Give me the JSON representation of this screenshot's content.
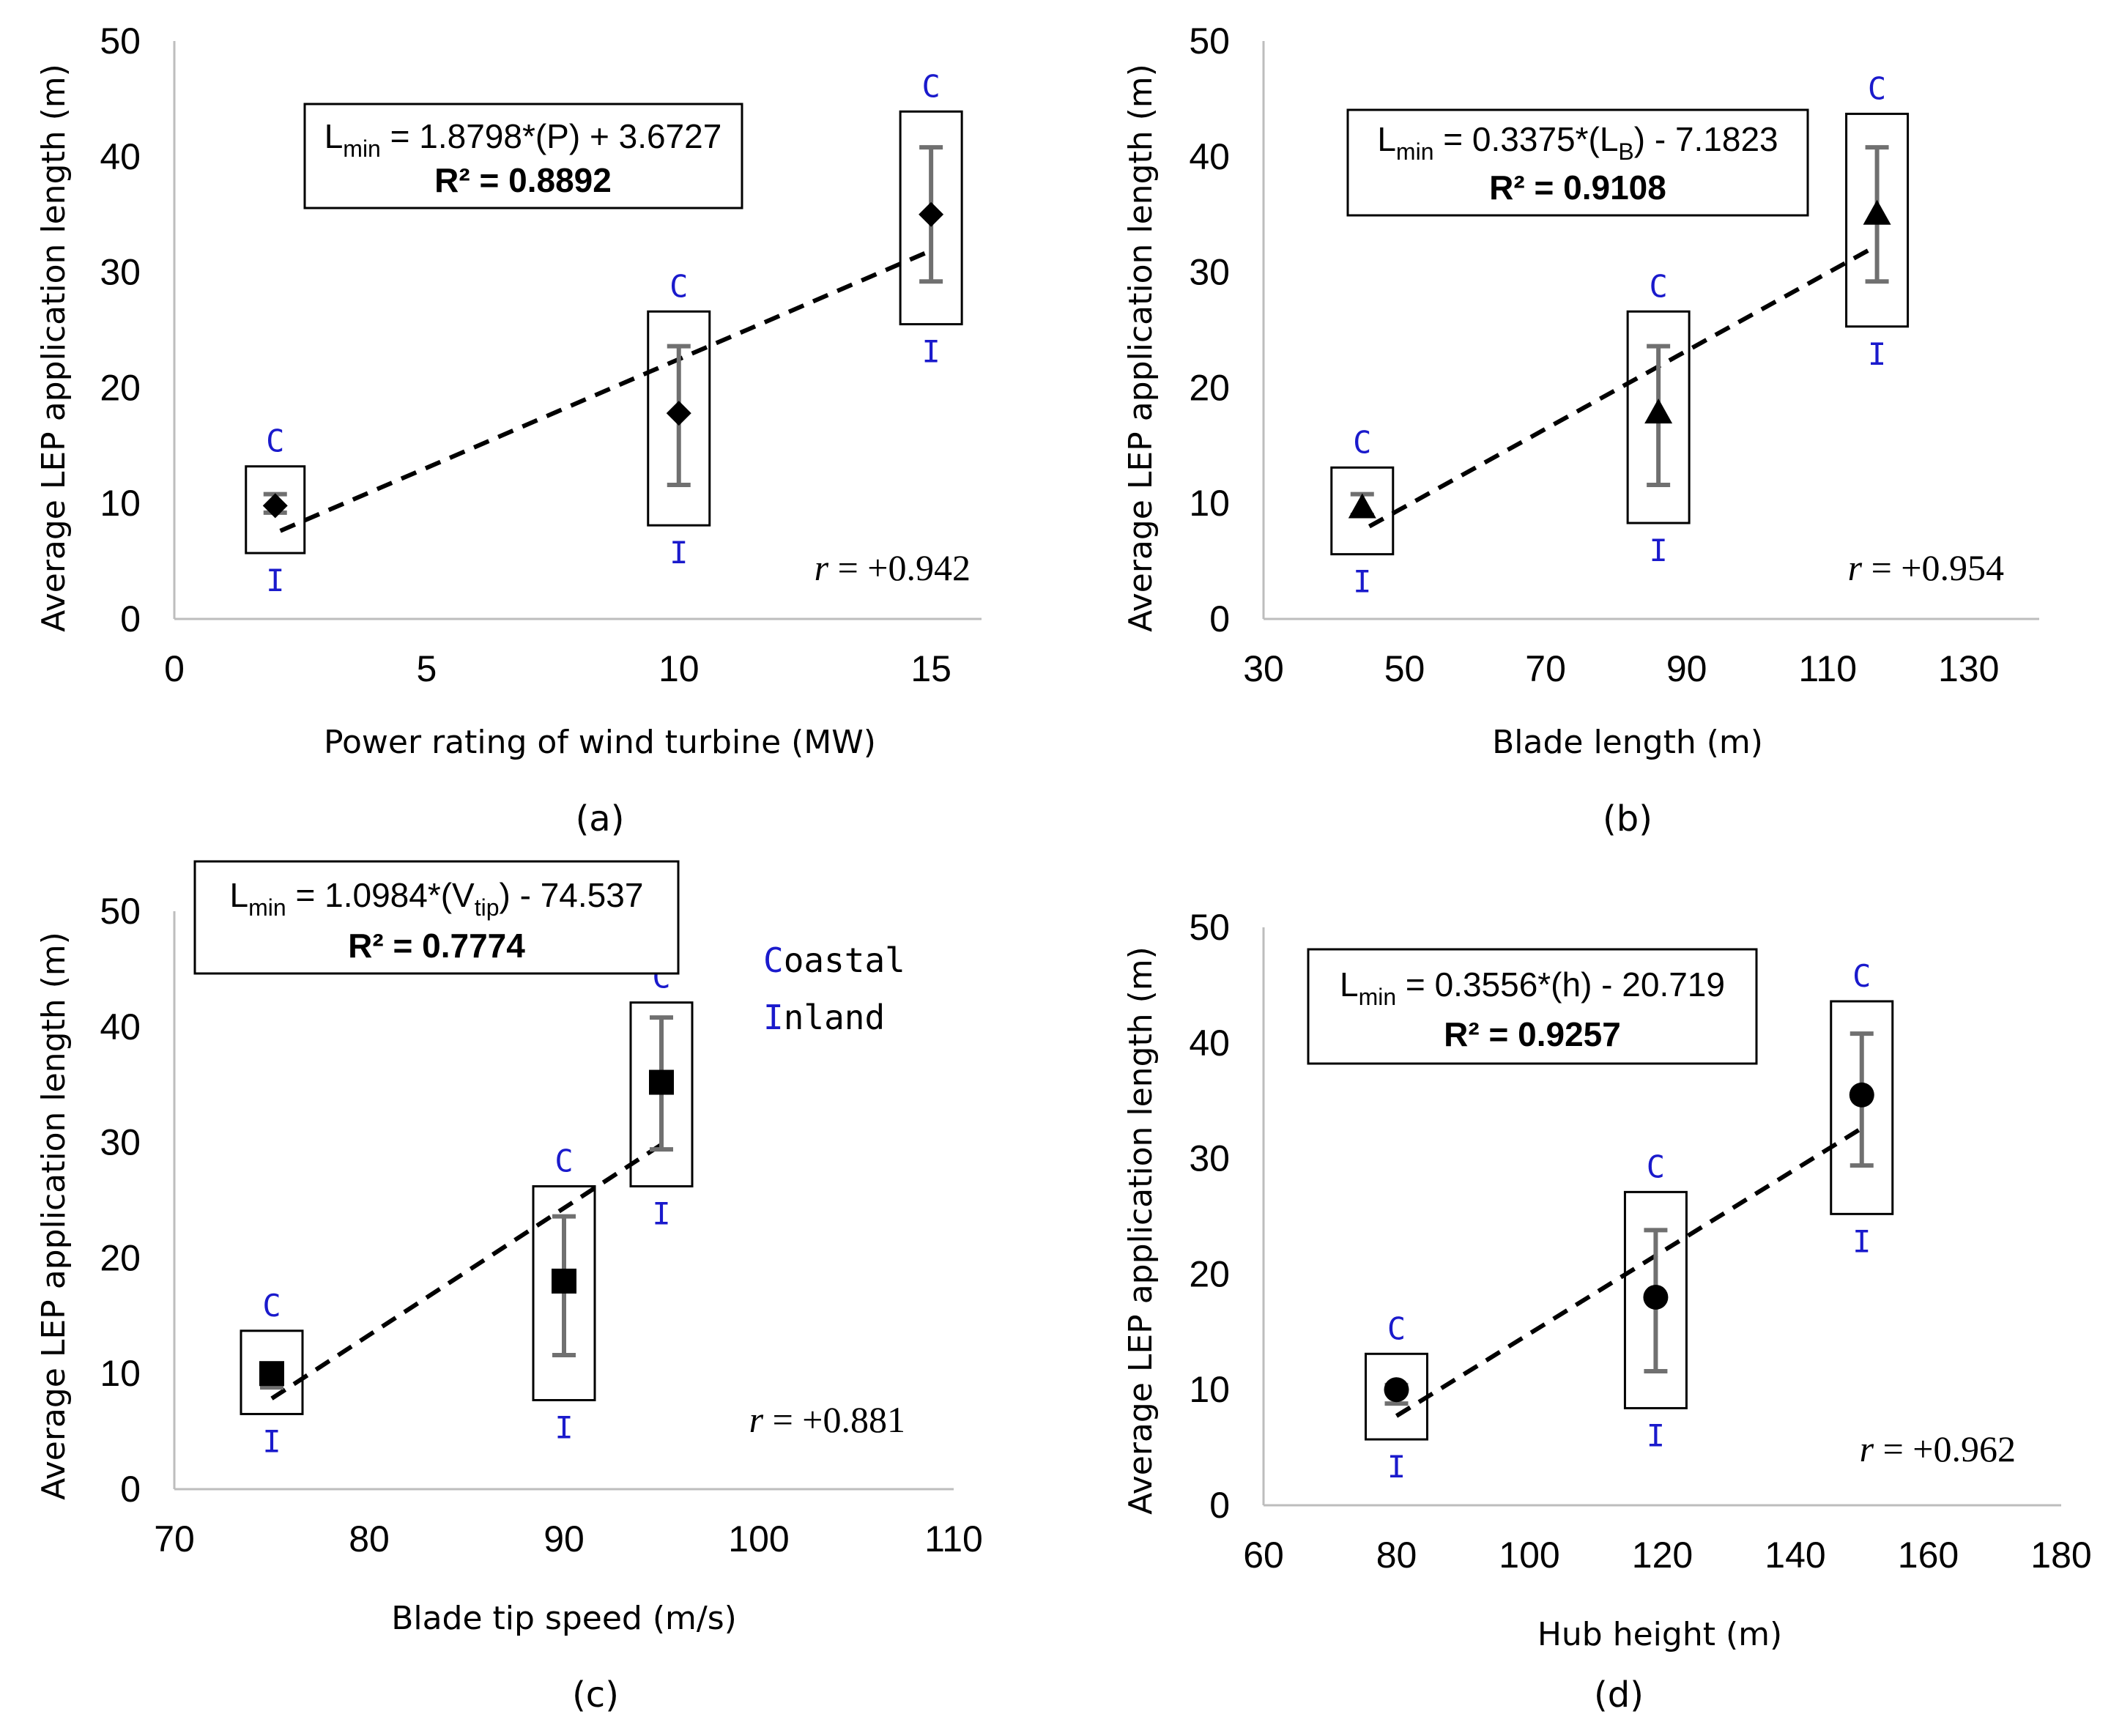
{
  "colors": {
    "ci_label": "#1a1acc",
    "errorbar": "#707070",
    "marker": "#000000",
    "trend": "#000000"
  },
  "legend": {
    "c_letter": "C",
    "c_rest": "oastal",
    "i_letter": "I",
    "i_rest": "nland"
  },
  "chart_data": [
    {
      "type": "scatter",
      "panel_label": "(a)",
      "marker": "diamond",
      "xlabel": "Power rating of wind turbine (MW)",
      "ylabel": "Average LEP application length (m)",
      "xlim": [
        0,
        16
      ],
      "ylim": [
        0,
        50
      ],
      "xticks": [
        "0",
        "5",
        "10",
        "15"
      ],
      "yticks": [
        "0",
        "10",
        "20",
        "30",
        "40",
        "50"
      ],
      "x": [
        2,
        10,
        15
      ],
      "y": [
        9.8,
        17.8,
        35
      ],
      "error_low": [
        9.2,
        11.6,
        29.2
      ],
      "error_high": [
        10.8,
        23.6,
        40.8
      ],
      "box_low": [
        5.7,
        8.1,
        25.5
      ],
      "box_high": [
        13.2,
        26.6,
        43.9
      ],
      "ci_labels": {
        "top": "C",
        "bottom": "I"
      },
      "trendline": {
        "x": [
          2.1,
          15
        ],
        "equation_lhs": "L",
        "equation_sub": "min",
        "equation_rhs": " = 1.8798*(P) + 3.6727",
        "r2": "R² = 0.8892"
      },
      "correlation": "r = +0.942"
    },
    {
      "type": "scatter",
      "panel_label": "(b)",
      "marker": "triangle",
      "xlabel": "Blade length (m)",
      "ylabel": "Average LEP application length (m)",
      "xlim": [
        30,
        140
      ],
      "ylim": [
        0,
        50
      ],
      "xticks": [
        "30",
        "50",
        "70",
        "90",
        "110",
        "130"
      ],
      "yticks": [
        "0",
        "10",
        "20",
        "30",
        "40",
        "50"
      ],
      "x": [
        44,
        86,
        117
      ],
      "y": [
        9.6,
        17.8,
        35
      ],
      "error_low": [
        9.0,
        11.6,
        29.2
      ],
      "error_high": [
        10.8,
        23.6,
        40.8
      ],
      "box_low": [
        5.6,
        8.3,
        25.3
      ],
      "box_high": [
        13.1,
        26.6,
        43.7
      ],
      "ci_labels": {
        "top": "C",
        "bottom": "I"
      },
      "trendline": {
        "x": [
          45,
          117
        ],
        "equation_lhs": "L",
        "equation_sub": "min",
        "equation_mid_before": " = 0.3375*(L",
        "equation_mid_sub": "B",
        "equation_rhs": ") - 7.1823",
        "r2": "R² = 0.9108"
      },
      "correlation": "r = +0.954"
    },
    {
      "type": "scatter",
      "panel_label": "(c)",
      "marker": "square",
      "xlabel": "Blade tip speed (m/s)",
      "ylabel": "Average LEP application length (m)",
      "xlim": [
        70,
        110
      ],
      "ylim": [
        0,
        50
      ],
      "xticks": [
        "70",
        "80",
        "90",
        "100",
        "110"
      ],
      "yticks": [
        "0",
        "10",
        "20",
        "30",
        "40",
        "50"
      ],
      "x": [
        75,
        90,
        95
      ],
      "y": [
        10,
        18,
        35.2
      ],
      "error_low": [
        8.8,
        11.6,
        29.4
      ],
      "error_high": [
        10.4,
        23.6,
        40.8
      ],
      "box_low": [
        6.5,
        7.7,
        26.2
      ],
      "box_high": [
        13.7,
        26.2,
        42.1
      ],
      "ci_labels": {
        "top": "C",
        "bottom": "I"
      },
      "trendline": {
        "x": [
          75,
          95
        ],
        "equation_lhs": "L",
        "equation_sub": "min",
        "equation_mid_before": " = 1.0984*(V",
        "equation_mid_sub": "tip",
        "equation_rhs": ") - 74.537",
        "r2": "R² = 0.7774"
      },
      "correlation": "r = +0.881"
    },
    {
      "type": "scatter",
      "panel_label": "(d)",
      "marker": "circle",
      "xlabel": "Hub height (m)",
      "ylabel": "Average LEP application length (m)",
      "xlim": [
        60,
        180
      ],
      "ylim": [
        0,
        50
      ],
      "xticks": [
        "60",
        "80",
        "100",
        "120",
        "140",
        "160",
        "180"
      ],
      "yticks": [
        "0",
        "10",
        "20",
        "30",
        "40",
        "50"
      ],
      "x": [
        80,
        119,
        150
      ],
      "y": [
        10,
        18,
        35.5
      ],
      "error_low": [
        8.8,
        11.6,
        29.4
      ],
      "error_high": [
        10.4,
        23.8,
        40.8
      ],
      "box_low": [
        5.7,
        8.4,
        25.2
      ],
      "box_high": [
        13.1,
        27.1,
        43.6
      ],
      "ci_labels": {
        "top": "C",
        "bottom": "I"
      },
      "trendline": {
        "x": [
          80,
          150
        ],
        "equation_lhs": "L",
        "equation_sub": "min",
        "equation_rhs": " = 0.3556*(h) - 20.719",
        "r2": "R² = 0.9257"
      },
      "correlation": "r = +0.962"
    }
  ]
}
